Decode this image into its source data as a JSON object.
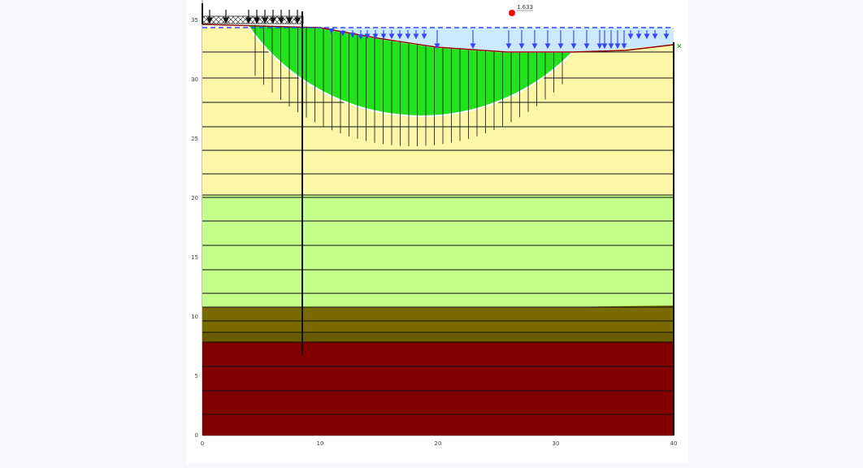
{
  "figure": {
    "x_ticks": [
      "0",
      "10",
      "20",
      "30",
      "40"
    ],
    "y_ticks": [
      "0",
      "5",
      "10",
      "15",
      "20",
      "25",
      "30",
      "35"
    ],
    "factor_of_safety": "1.633"
  },
  "colors": {
    "layer_top": "#fbf7a6",
    "layer_middle": "#c3ff8a",
    "layer_olive": "#7a6a00",
    "layer_base": "#800000",
    "slip_mass": "#22e31b",
    "water": "#cce9ff",
    "water_line": "#3344ff",
    "slip_center": "#ff0000"
  },
  "chart_data": {
    "type": "slope-stability",
    "x_range": [
      0,
      40
    ],
    "y_range": [
      0,
      36
    ],
    "ground_surface": [
      [
        0,
        35
      ],
      [
        4,
        35
      ],
      [
        9,
        35
      ],
      [
        14,
        33
      ],
      [
        20,
        32.5
      ],
      [
        26,
        32
      ],
      [
        33,
        32.5
      ],
      [
        40,
        33
      ]
    ],
    "water_table": [
      [
        0,
        34.3
      ],
      [
        40,
        34.3
      ]
    ],
    "layer_boundaries": [
      {
        "name": "top-lower",
        "y": 20.3
      },
      {
        "name": "green-lower",
        "y": 10.9
      },
      {
        "name": "olive-lower",
        "y": 8
      }
    ],
    "slip_circle": {
      "center": [
        26.2,
        35.8
      ],
      "entry_x": 3.8,
      "exit_x": 31.5,
      "bottom_y": 24.6
    },
    "pile": {
      "x": 8.5,
      "top": 36,
      "bottom": 6.8
    },
    "factor_of_safety": 1.633
  }
}
